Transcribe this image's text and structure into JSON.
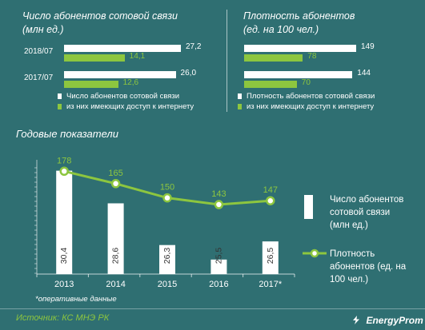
{
  "top_left": {
    "title_line1": "Число абонентов сотовой связи",
    "title_line2": "(млн ед.)",
    "rows": [
      {
        "label": "2018/07",
        "white": 27.2,
        "white_label": "27,2",
        "green": 14.1,
        "green_label": "14,1"
      },
      {
        "label": "2017/07",
        "white": 26.0,
        "white_label": "26,0",
        "green": 12.6,
        "green_label": "12,6"
      }
    ],
    "legend_white": "Число абонентов сотовой связи",
    "legend_green": "из них имеющих доступ к интернету",
    "max": 27.2
  },
  "top_right": {
    "title_line1": "Плотность абонентов",
    "title_line2": "(ед. на 100 чел.)",
    "rows": [
      {
        "white": 149,
        "white_label": "149",
        "green": 78,
        "green_label": "78"
      },
      {
        "white": 144,
        "white_label": "144",
        "green": 70,
        "green_label": "70"
      }
    ],
    "legend_white": "Плотность абонентов сотовой связи",
    "legend_green": "из них имеющих доступ к интернету",
    "max": 149
  },
  "section_title": "Годовые показатели",
  "chart_data": {
    "type": "bar",
    "categories": [
      "2013",
      "2014",
      "2015",
      "2016",
      "2017*"
    ],
    "series": [
      {
        "name": "Число абонентов сотовой связи (млн ед.)",
        "type": "bar",
        "values": [
          30.4,
          28.6,
          26.3,
          25.5,
          26.5
        ],
        "labels": [
          "30,4",
          "28,6",
          "26,3",
          "25,5",
          "26,5"
        ],
        "color": "#ffffff"
      },
      {
        "name": "Плотность абонентов (ед. на 100 чел.)",
        "type": "line",
        "values": [
          178,
          165,
          150,
          143,
          147
        ],
        "labels": [
          "178",
          "165",
          "150",
          "143",
          "147"
        ],
        "color": "#8dc63f"
      }
    ],
    "bar_ylim": [
      24.7,
      31
    ],
    "line_ylim": [
      70,
      190
    ],
    "grid": false,
    "legend": "right"
  },
  "right_legend": {
    "bar_label_line1": "Число абонентов",
    "bar_label_line2": "сотовой связи",
    "bar_label_line3": "(млн ед.)",
    "line_label_line1": "Плотность",
    "line_label_line2": "абонентов (ед. на",
    "line_label_line3": "100 чел.)"
  },
  "footnote": "*оперативные данные",
  "source": "Источник: КС МНЭ РК",
  "logo": "EnergyProm",
  "colors": {
    "background": "#2f6f72",
    "accent": "#8dc63f",
    "white": "#ffffff"
  }
}
